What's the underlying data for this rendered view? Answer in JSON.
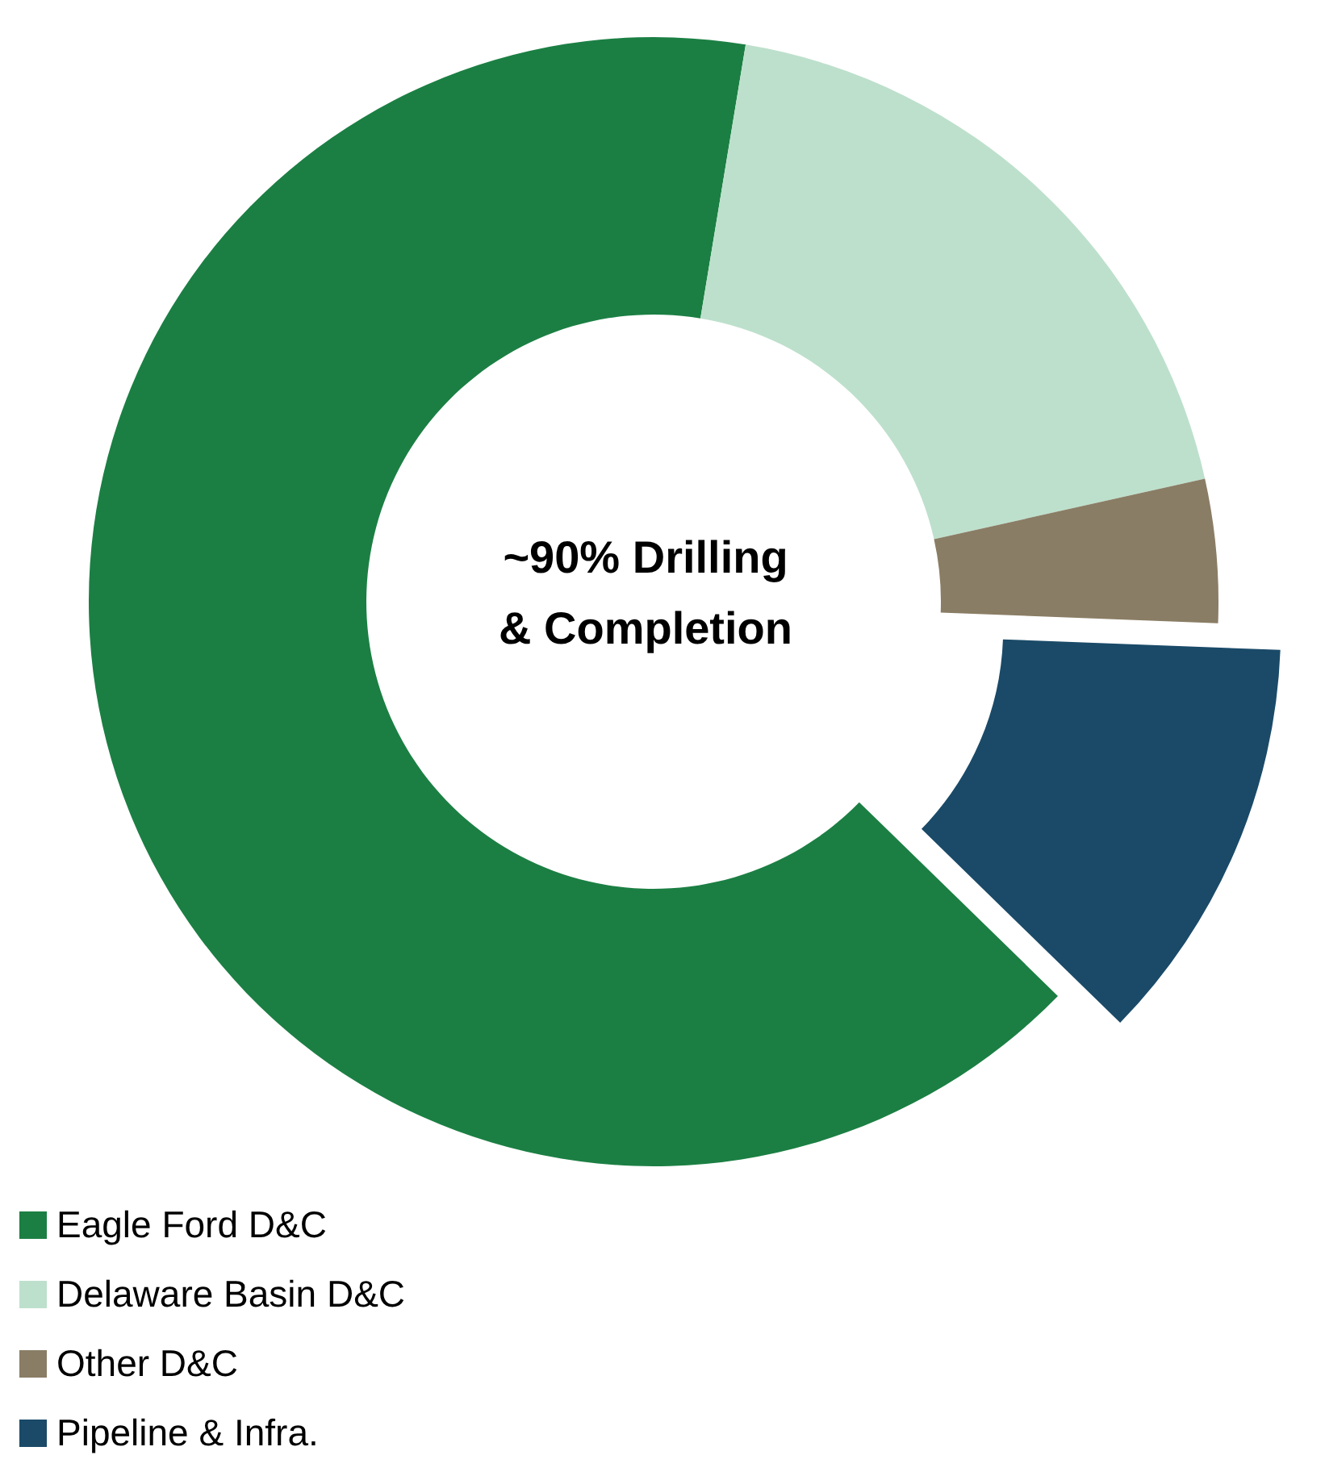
{
  "chart_data": {
    "type": "donut",
    "categories": [
      "Eagle Ford D&C",
      "Delaware Basin D&C",
      "Other D&C",
      "Pipeline & Infra."
    ],
    "values": [
      65.3,
      18.9,
      4.1,
      11.7
    ],
    "colors": [
      "#1b7f43",
      "#bde0cc",
      "#8a7d65",
      "#1a4a68"
    ],
    "annotations": [
      "~90% Drilling & Completion"
    ],
    "legend": "bottom left"
  }
}
